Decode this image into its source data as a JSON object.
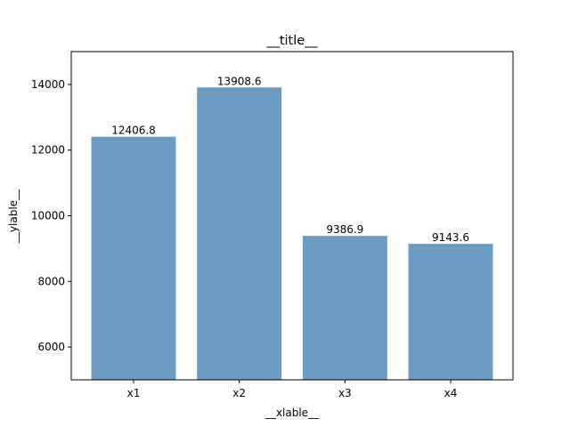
{
  "chart_data": {
    "type": "bar",
    "title": "__title__",
    "xlabel": "__xlable__",
    "ylabel": "__ylable__",
    "categories": [
      "x1",
      "x2",
      "x3",
      "x4"
    ],
    "values": [
      12406.8,
      13908.6,
      9386.9,
      9143.6
    ],
    "data_labels": [
      "12406.8",
      "13908.6",
      "9386.9",
      "9143.6"
    ],
    "ylim": [
      5000,
      15000
    ],
    "yticks": [
      6000,
      8000,
      10000,
      12000,
      14000
    ],
    "ytick_labels": [
      "6000",
      "8000",
      "10000",
      "12000",
      "14000"
    ],
    "grid": false,
    "bar_color": "#6b9bc3"
  }
}
